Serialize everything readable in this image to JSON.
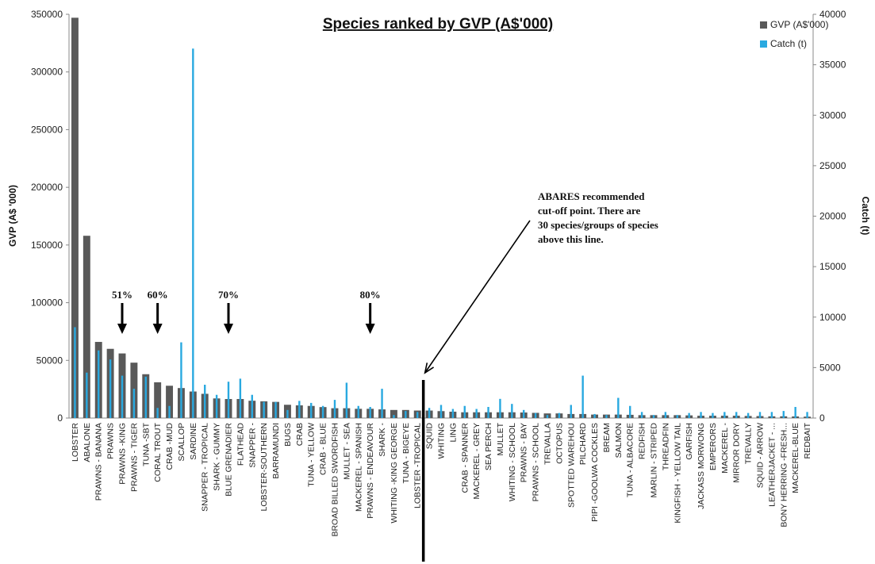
{
  "chart_data": {
    "type": "bar",
    "title": "Species ranked by GVP (A$'000)",
    "ylabel_left": "GVP (A$ '000)",
    "ylabel_right": "Catch (t)",
    "ylim_left": [
      0,
      350000
    ],
    "ylim_right": [
      0,
      40000
    ],
    "yticks_left": [
      "0",
      "50000",
      "100000",
      "150000",
      "200000",
      "250000",
      "300000",
      "350000"
    ],
    "yticks_right": [
      "0",
      "5000",
      "10000",
      "15000",
      "20000",
      "25000",
      "30000",
      "35000",
      "40000"
    ],
    "grid": false,
    "legend_position": "top-right",
    "categories": [
      "LOBSTER",
      "ABALONE",
      "PRAWNS - BANANA",
      "PRAWNS",
      "PRAWNS -KING",
      "PRAWNS - TIGER",
      "TUNA -SBT",
      "CORAL TROUT",
      "CRAB -MUD",
      "SCALLOP",
      "SARDINE",
      "SNAPPER - TROPICAL",
      "SHARK - GUMMY",
      "BLUE GRENADIER",
      "FLATHEAD",
      "SNAPPER -",
      "LOBSTER-SOUTHERN",
      "BARRAMUNDI",
      "BUGS",
      "CRAB",
      "TUNA - YELLOW",
      "CRAB - BLUE",
      "BROAD BILLED SWORDFISH",
      "MULLET - SEA",
      "MACKEREL - SPANISH",
      "PRAWNS - ENDEAVOUR",
      "SHARK -",
      "WHITING -KING GEORGE",
      "TUNA - BIGEYE",
      "LOBSTER -TROPICAL",
      "SQUID",
      "WHITING",
      "LING",
      "CRAB - SPANNER",
      "MACKEREL - GREY",
      "SEA PERCH",
      "MULLET",
      "WHITING - SCHOOL",
      "PRAWNS - BAY",
      "PRAWNS - SCHOOL",
      "TREVALLA",
      "OCTOPUS",
      "SPOTTED WAREHOU",
      "PILCHARD",
      "PIPI -GOOLWA COCKLES",
      "BREAM",
      "SALMON",
      "TUNA - ALBACORE",
      "REDFISH",
      "MARLIN - STRIPED",
      "THREADFIN",
      "KINGFISH - YELLOW TAIL",
      "GARFISH",
      "JACKASS MORWONG",
      "EMPERORS",
      "MACKEREL -",
      "MIRROR DORY",
      "TREVALLY",
      "SQUID - ARROW",
      "LEATHERJACKET - ...",
      "BONY HERRING -FRESH...",
      "MACKEREL-BLUE",
      "REDBAIT"
    ],
    "series": [
      {
        "name": "GVP (A$'000)",
        "axis": "left",
        "color": "#595959",
        "values": [
          347000,
          158000,
          66000,
          60000,
          56000,
          48000,
          38000,
          31000,
          28000,
          26000,
          23000,
          21000,
          17000,
          16500,
          16500,
          15000,
          14500,
          14000,
          11500,
          11000,
          10500,
          9500,
          8500,
          8500,
          8000,
          8000,
          7500,
          7000,
          7000,
          6500,
          6500,
          6000,
          5500,
          5000,
          5000,
          5000,
          5000,
          5000,
          4800,
          4500,
          4000,
          4000,
          3500,
          3500,
          3000,
          3000,
          3000,
          2800,
          2500,
          2500,
          2500,
          2500,
          2300,
          2000,
          2000,
          2000,
          2000,
          1800,
          1700,
          1500,
          1500,
          1400,
          1200
        ]
      },
      {
        "name": "Catch (t)",
        "axis": "right",
        "color": "#29a9e0",
        "values": [
          9000,
          4500,
          6700,
          5800,
          4200,
          2900,
          4100,
          1000,
          1200,
          7500,
          36600,
          3300,
          2300,
          3600,
          3900,
          2300,
          1600,
          1600,
          800,
          1700,
          1500,
          1200,
          1800,
          3500,
          1200,
          1100,
          2900,
          300,
          700,
          600,
          1000,
          1300,
          900,
          1200,
          900,
          1100,
          1900,
          1400,
          800,
          500,
          300,
          500,
          1300,
          4200,
          400,
          300,
          2000,
          1200,
          600,
          300,
          600,
          300,
          500,
          600,
          500,
          600,
          600,
          500,
          600,
          600,
          700,
          1100,
          600
        ]
      }
    ],
    "annotations": [
      {
        "label": "51%",
        "after_index": 4
      },
      {
        "label": "60%",
        "after_index": 7
      },
      {
        "label": "70%",
        "after_index": 13
      },
      {
        "label": "80%",
        "after_index": 25
      }
    ],
    "cutoff": {
      "after_index": 29,
      "note_lines": [
        "ABARES recommended",
        "cut-off point. There are",
        "30 species/groups of species",
        "above this line."
      ]
    }
  }
}
